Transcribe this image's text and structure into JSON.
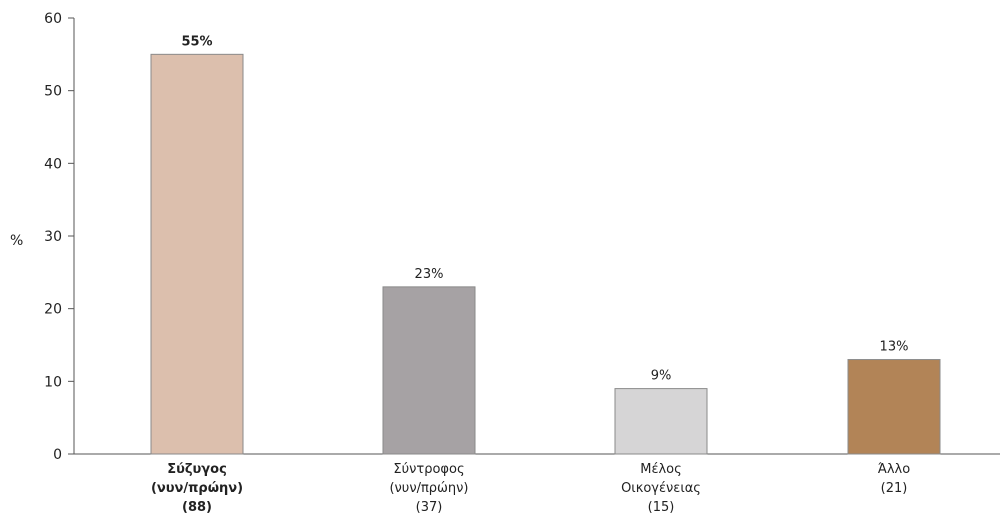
{
  "chart_data": {
    "type": "bar",
    "ylabel": "%",
    "ylim": [
      0,
      60
    ],
    "yticks": [
      0,
      10,
      20,
      30,
      40,
      50,
      60
    ],
    "grid": false,
    "categories": [
      {
        "lines": [
          "Σύζυγος",
          "(νυν/πρώην)",
          "(88)"
        ],
        "value": 55,
        "value_label": "55%",
        "color": "#dcbfad",
        "bold": true
      },
      {
        "lines": [
          "Σύντροφος",
          "(νυν/πρώην)",
          "(37)"
        ],
        "value": 23,
        "value_label": "23%",
        "color": "#a6a2a4",
        "bold": false
      },
      {
        "lines": [
          "Μέλος",
          "Οικογένειας",
          "(15)"
        ],
        "value": 9,
        "value_label": "9%",
        "color": "#d6d5d6",
        "bold": false
      },
      {
        "lines": [
          "Άλλο",
          "(21)"
        ],
        "value": 13,
        "value_label": "13%",
        "color": "#b28457",
        "bold": false
      }
    ]
  }
}
